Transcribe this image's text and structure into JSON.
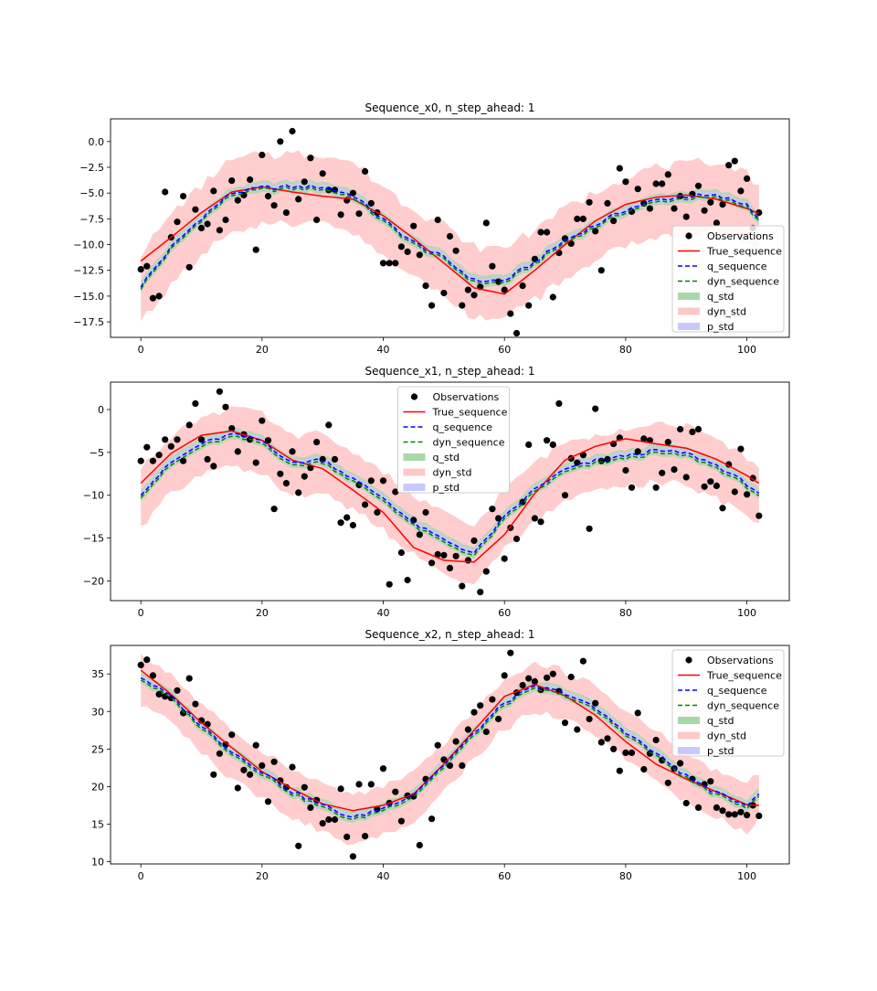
{
  "legend_labels": {
    "observations": "Observations",
    "true_sequence": "True_sequence",
    "q_sequence": "q_sequence",
    "dyn_sequence": "dyn_sequence",
    "q_std": "q_std",
    "dyn_std": "dyn_std",
    "p_std": "p_std"
  },
  "colors": {
    "observations": "#000000",
    "true_sequence": "#ff0000",
    "q_sequence": "#0000ff",
    "dyn_sequence": "#008000",
    "q_std": "#a8d8a8",
    "dyn_std": "#ffc8c8",
    "p_std": "#c8c8ff"
  },
  "chart_data": [
    {
      "type": "line",
      "title": "Sequence_x0, n_step_ahead: 1",
      "xlabel": "",
      "ylabel": "",
      "xlim": [
        -5,
        107
      ],
      "ylim": [
        -19,
        2.2
      ],
      "xticks": [
        0,
        20,
        40,
        60,
        80,
        100
      ],
      "xtick_labels": [
        "0",
        "20",
        "40",
        "60",
        "80",
        "100"
      ],
      "yticks": [
        0,
        -2.5,
        -5,
        -7.5,
        -10,
        -12.5,
        -15,
        -17.5
      ],
      "ytick_labels": [
        "0.0",
        "−2.5",
        "−5.0",
        "−7.5",
        "−10.0",
        "−12.5",
        "−15.0",
        "−17.5"
      ],
      "legend_position": "lower-right",
      "true_sequence": {
        "x": [
          0,
          5,
          10,
          15,
          20,
          25,
          30,
          35,
          40,
          45,
          50,
          55,
          60,
          65,
          70,
          75,
          80,
          85,
          90,
          95,
          100,
          102
        ],
        "y": [
          -11.6,
          -9.3,
          -6.9,
          -4.9,
          -4.4,
          -4.9,
          -5.3,
          -5.6,
          -7.2,
          -9.4,
          -11.8,
          -14.2,
          -14.8,
          -12.5,
          -10.0,
          -7.7,
          -6.1,
          -5.4,
          -5.2,
          -5.6,
          -6.5,
          -7.0
        ]
      },
      "q_sequence": {
        "x": [
          0,
          5,
          10,
          15,
          20,
          25,
          30,
          35,
          40,
          45,
          50,
          55,
          60,
          65,
          70,
          75,
          80,
          85,
          90,
          95,
          100,
          102
        ],
        "y": [
          -14.0,
          -10.3,
          -7.4,
          -5.0,
          -4.5,
          -4.4,
          -4.4,
          -5.2,
          -7.6,
          -9.8,
          -11.3,
          -13.5,
          -13.5,
          -11.7,
          -9.6,
          -8.1,
          -6.6,
          -5.7,
          -5.3,
          -5.3,
          -6.1,
          -7.4
        ]
      },
      "dyn_sequence": {
        "x": [
          0,
          5,
          10,
          15,
          20,
          25,
          30,
          35,
          40,
          45,
          50,
          55,
          60,
          65,
          70,
          75,
          80,
          85,
          90,
          95,
          100,
          102
        ],
        "y": [
          -14.2,
          -10.5,
          -7.6,
          -5.2,
          -4.7,
          -4.6,
          -4.6,
          -5.4,
          -7.8,
          -10.0,
          -11.5,
          -13.7,
          -13.7,
          -11.9,
          -9.8,
          -8.3,
          -6.8,
          -5.9,
          -5.5,
          -5.5,
          -6.3,
          -7.6
        ]
      },
      "dyn_std_halfwidth": 3.4,
      "observations": {
        "x": [
          0,
          1,
          2,
          3,
          4,
          5,
          6,
          7,
          8,
          9,
          10,
          11,
          12,
          13,
          14,
          15,
          16,
          17,
          18,
          19,
          20,
          21,
          22,
          23,
          24,
          25,
          26,
          27,
          28,
          29,
          30,
          31,
          32,
          33,
          34,
          35,
          36,
          37,
          38,
          39,
          40,
          41,
          42,
          43,
          44,
          45,
          46,
          47,
          48,
          49,
          50,
          51,
          52,
          53,
          54,
          55,
          56,
          57,
          58,
          59,
          60,
          61,
          62,
          63,
          64,
          65,
          66,
          67,
          68,
          69,
          70,
          71,
          72,
          73,
          74,
          75,
          76,
          77,
          78,
          79,
          80,
          81,
          82,
          83,
          84,
          85,
          86,
          87,
          88,
          89,
          90,
          91,
          92,
          93,
          94,
          95,
          96,
          97,
          98,
          99,
          100,
          101,
          102
        ],
        "y": [
          -12.4,
          -12.1,
          -15.2,
          -15.0,
          -4.9,
          -9.3,
          -7.8,
          -5.3,
          -12.2,
          -6.6,
          -8.4,
          -8.0,
          -4.8,
          -8.6,
          -7.6,
          -3.8,
          -5.7,
          -5.2,
          -3.7,
          -10.5,
          -1.3,
          -5.3,
          -6.2,
          0.0,
          -6.9,
          1.0,
          -5.6,
          -3.9,
          -1.6,
          -7.6,
          -3.1,
          -4.7,
          -4.7,
          -7.1,
          -5.7,
          -5.0,
          -7.0,
          -2.9,
          -6.0,
          -6.9,
          -11.8,
          -11.8,
          -11.8,
          -10.2,
          -10.7,
          -8.2,
          -11.0,
          -14.0,
          -15.9,
          -7.6,
          -14.7,
          -9.2,
          -10.6,
          -15.9,
          -14.4,
          -14.9,
          -14.1,
          -7.9,
          -12.1,
          -13.6,
          -14.4,
          -16.7,
          -18.6,
          -14.0,
          -15.9,
          -11.4,
          -8.8,
          -8.8,
          -15.1,
          -10.8,
          -9.4,
          -9.9,
          -7.5,
          -7.5,
          -5.9,
          -8.7,
          -12.5,
          -6.0,
          -7.7,
          -2.6,
          -3.9,
          -6.8,
          -4.6,
          -6.0,
          -6.5,
          -4.1,
          -4.1,
          -3.2,
          -6.5,
          -5.3,
          -7.3,
          -5.1,
          -4.3,
          -6.7,
          -5.9,
          -7.9,
          -6.1,
          -2.3,
          -1.9,
          -4.8,
          -3.6,
          -8.4,
          -6.9
        ]
      }
    },
    {
      "type": "line",
      "title": "Sequence_x1, n_step_ahead: 1",
      "xlabel": "",
      "ylabel": "",
      "xlim": [
        -5,
        107
      ],
      "ylim": [
        -22.3,
        3.2
      ],
      "xticks": [
        0,
        20,
        40,
        60,
        80,
        100
      ],
      "xtick_labels": [
        "0",
        "20",
        "40",
        "60",
        "80",
        "100"
      ],
      "yticks": [
        0,
        -5,
        -10,
        -15,
        -20
      ],
      "ytick_labels": [
        "0",
        "−5",
        "−10",
        "−15",
        "−20"
      ],
      "legend_position": "upper-center",
      "true_sequence": {
        "x": [
          0,
          5,
          10,
          15,
          20,
          25,
          30,
          35,
          40,
          45,
          50,
          55,
          60,
          65,
          70,
          75,
          80,
          85,
          90,
          95,
          100,
          102
        ],
        "y": [
          -8.6,
          -5.1,
          -3.0,
          -2.5,
          -3.6,
          -5.9,
          -6.9,
          -9.4,
          -12.0,
          -16.1,
          -17.6,
          -17.8,
          -14.6,
          -9.8,
          -5.9,
          -4.3,
          -3.4,
          -4.0,
          -4.5,
          -5.8,
          -7.7,
          -8.6
        ]
      },
      "q_sequence": {
        "x": [
          0,
          5,
          10,
          15,
          20,
          25,
          30,
          35,
          40,
          45,
          50,
          55,
          60,
          65,
          70,
          75,
          80,
          85,
          90,
          95,
          100,
          102
        ],
        "y": [
          -9.8,
          -6.2,
          -4.0,
          -2.9,
          -3.6,
          -6.3,
          -5.8,
          -8.1,
          -10.3,
          -13.3,
          -15.2,
          -16.8,
          -12.6,
          -9.3,
          -7.0,
          -6.0,
          -5.4,
          -4.8,
          -5.1,
          -6.5,
          -8.7,
          -9.7
        ]
      },
      "dyn_sequence": {
        "x": [
          0,
          5,
          10,
          15,
          20,
          25,
          30,
          35,
          40,
          45,
          50,
          55,
          60,
          65,
          70,
          75,
          80,
          85,
          90,
          95,
          100,
          102
        ],
        "y": [
          -10.1,
          -6.5,
          -4.3,
          -3.2,
          -3.9,
          -6.6,
          -6.1,
          -8.4,
          -10.6,
          -13.6,
          -15.5,
          -17.1,
          -12.9,
          -9.6,
          -7.3,
          -6.3,
          -5.7,
          -5.1,
          -5.4,
          -6.8,
          -9.0,
          -10.0
        ]
      },
      "dyn_std_halfwidth": 3.4,
      "observations": {
        "x": [
          0,
          1,
          2,
          3,
          4,
          5,
          6,
          7,
          8,
          9,
          10,
          11,
          12,
          13,
          14,
          15,
          16,
          17,
          18,
          19,
          20,
          21,
          22,
          23,
          24,
          25,
          26,
          27,
          28,
          29,
          30,
          31,
          32,
          33,
          34,
          35,
          36,
          37,
          38,
          39,
          40,
          41,
          42,
          43,
          44,
          45,
          46,
          47,
          48,
          49,
          50,
          51,
          52,
          53,
          54,
          55,
          56,
          57,
          58,
          59,
          60,
          61,
          62,
          63,
          64,
          65,
          66,
          67,
          68,
          69,
          70,
          71,
          72,
          73,
          74,
          75,
          76,
          77,
          78,
          79,
          80,
          81,
          82,
          83,
          84,
          85,
          86,
          87,
          88,
          89,
          90,
          91,
          92,
          93,
          94,
          95,
          96,
          97,
          98,
          99,
          100,
          101,
          102
        ],
        "y": [
          -6.0,
          -4.4,
          -6.0,
          -5.3,
          -3.5,
          -4.3,
          -3.5,
          -6.0,
          -1.8,
          0.7,
          -3.5,
          -5.8,
          -6.6,
          2.1,
          0.3,
          -2.2,
          -4.9,
          -2.9,
          -3.5,
          -6.2,
          -1.3,
          -3.6,
          -11.6,
          -7.5,
          -8.6,
          -4.9,
          -9.7,
          -7.8,
          -6.8,
          -3.8,
          -5.8,
          -1.8,
          -5.8,
          -13.2,
          -12.6,
          -13.5,
          -8.8,
          -11.1,
          -8.3,
          -12.0,
          -8.3,
          -20.4,
          -9.6,
          -16.7,
          -19.9,
          -12.9,
          -14.6,
          -12.0,
          -17.9,
          -16.9,
          -17.0,
          -18.5,
          -17.1,
          -20.6,
          -17.6,
          -15.3,
          -21.3,
          -18.9,
          -11.6,
          -12.7,
          -17.4,
          -13.8,
          -15.1,
          -10.8,
          -4.1,
          -12.7,
          -13.1,
          -3.6,
          -4.1,
          0.7,
          -10.0,
          -5.7,
          -6.2,
          -5.3,
          -13.9,
          0.1,
          -6.0,
          -5.8,
          -4.0,
          -3.3,
          -7.1,
          -9.1,
          -4.9,
          -3.4,
          -3.6,
          -9.1,
          -7.4,
          -3.8,
          -7.0,
          -2.3,
          -7.9,
          -2.6,
          -2.3,
          -9.0,
          -8.4,
          -8.9,
          -11.5,
          -6.4,
          -9.6,
          -4.6,
          -9.9,
          -8.0,
          -12.4
        ]
      }
    },
    {
      "type": "line",
      "title": "Sequence_x2, n_step_ahead: 1",
      "xlabel": "",
      "ylabel": "",
      "xlim": [
        -5,
        107
      ],
      "ylim": [
        9.7,
        38.8
      ],
      "xticks": [
        0,
        20,
        40,
        60,
        80,
        100
      ],
      "xtick_labels": [
        "0",
        "20",
        "40",
        "60",
        "80",
        "100"
      ],
      "yticks": [
        10,
        15,
        20,
        25,
        30,
        35
      ],
      "ytick_labels": [
        "10",
        "15",
        "20",
        "25",
        "30",
        "35"
      ],
      "legend_position": "upper-right",
      "true_sequence": {
        "x": [
          0,
          5,
          10,
          15,
          20,
          25,
          30,
          35,
          40,
          45,
          50,
          55,
          60,
          65,
          70,
          75,
          80,
          85,
          90,
          95,
          100,
          102
        ],
        "y": [
          35.5,
          32.3,
          28.5,
          25.2,
          22.0,
          19.7,
          17.7,
          16.8,
          17.5,
          19.0,
          23.0,
          27.5,
          32.0,
          33.6,
          32.1,
          29.5,
          26.0,
          23.0,
          21.0,
          19.3,
          17.6,
          17.5
        ]
      },
      "q_sequence": {
        "x": [
          0,
          5,
          10,
          15,
          20,
          25,
          30,
          35,
          40,
          45,
          50,
          55,
          60,
          65,
          70,
          75,
          80,
          85,
          90,
          95,
          100,
          102
        ],
        "y": [
          34.6,
          32.0,
          28.1,
          24.7,
          22.0,
          19.3,
          17.5,
          15.8,
          17.2,
          19.0,
          22.9,
          27.1,
          31.2,
          33.3,
          32.5,
          30.4,
          27.3,
          24.4,
          21.4,
          19.1,
          17.6,
          19.2
        ]
      },
      "dyn_sequence": {
        "x": [
          0,
          5,
          10,
          15,
          20,
          25,
          30,
          35,
          40,
          45,
          50,
          55,
          60,
          65,
          70,
          75,
          80,
          85,
          90,
          95,
          100,
          102
        ],
        "y": [
          34.3,
          31.7,
          27.8,
          24.4,
          21.7,
          19.0,
          17.2,
          15.5,
          16.9,
          18.7,
          22.6,
          26.8,
          30.9,
          33.0,
          32.2,
          30.1,
          27.0,
          24.1,
          21.1,
          18.8,
          17.3,
          18.9
        ]
      },
      "dyn_std_halfwidth": 3.2,
      "observations": {
        "x": [
          0,
          1,
          2,
          3,
          4,
          5,
          6,
          7,
          8,
          9,
          10,
          11,
          12,
          13,
          14,
          15,
          16,
          17,
          18,
          19,
          20,
          21,
          22,
          23,
          24,
          25,
          26,
          27,
          28,
          29,
          30,
          31,
          32,
          33,
          34,
          35,
          36,
          37,
          38,
          39,
          40,
          41,
          42,
          43,
          44,
          45,
          46,
          47,
          48,
          49,
          50,
          51,
          52,
          53,
          54,
          55,
          56,
          57,
          58,
          59,
          60,
          61,
          62,
          63,
          64,
          65,
          66,
          67,
          68,
          69,
          70,
          71,
          72,
          73,
          74,
          75,
          76,
          77,
          78,
          79,
          80,
          81,
          82,
          83,
          84,
          85,
          86,
          87,
          88,
          89,
          90,
          91,
          92,
          93,
          94,
          95,
          96,
          97,
          98,
          99,
          100,
          101,
          102
        ],
        "y": [
          36.2,
          36.9,
          34.8,
          32.3,
          32.0,
          31.8,
          32.8,
          29.8,
          34.4,
          31.0,
          28.8,
          28.3,
          21.6,
          24.4,
          25.6,
          26.9,
          19.8,
          22.2,
          21.6,
          25.5,
          22.8,
          18.0,
          23.3,
          20.8,
          19.9,
          22.6,
          12.1,
          19.9,
          17.2,
          18.2,
          15.1,
          15.6,
          15.6,
          19.7,
          13.3,
          10.7,
          20.3,
          13.4,
          20.3,
          17.0,
          22.4,
          17.8,
          19.3,
          15.4,
          18.8,
          18.7,
          12.2,
          21.0,
          15.7,
          25.5,
          23.6,
          22.8,
          26.0,
          22.8,
          27.6,
          29.9,
          30.8,
          27.3,
          31.6,
          29.0,
          34.8,
          37.8,
          32.5,
          33.5,
          34.4,
          34.0,
          32.9,
          34.5,
          35.0,
          32.7,
          28.5,
          34.6,
          27.6,
          36.7,
          29.0,
          31.1,
          25.9,
          26.4,
          25.0,
          22.1,
          24.5,
          24.5,
          29.8,
          22.3,
          24.4,
          26.2,
          23.5,
          20.5,
          22.4,
          23.1,
          17.8,
          21.0,
          17.2,
          20.3,
          20.7,
          17.2,
          16.8,
          16.3,
          16.3,
          16.6,
          16.2,
          17.5,
          16.1
        ]
      }
    }
  ]
}
